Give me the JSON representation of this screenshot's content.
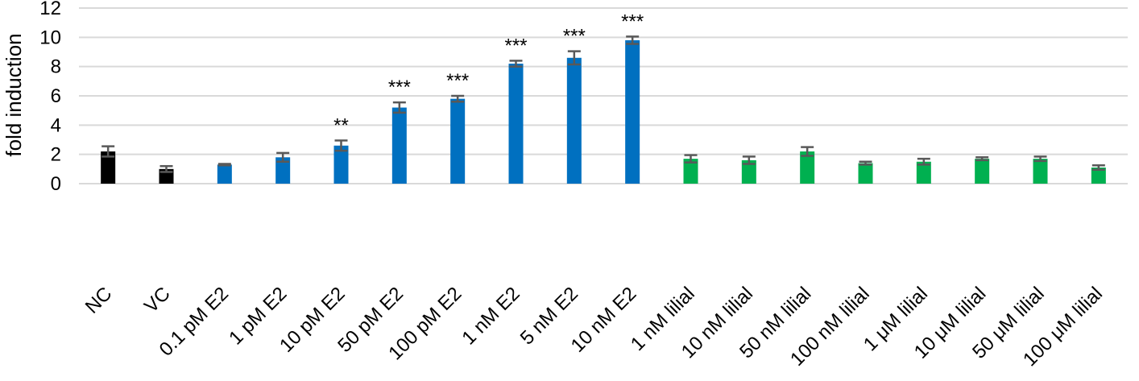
{
  "chart_data": {
    "type": "bar",
    "title": "",
    "xlabel": "",
    "ylabel": "fold induction",
    "ylim": [
      0,
      12
    ],
    "yticks": [
      0,
      2,
      4,
      6,
      8,
      10,
      12
    ],
    "grid": true,
    "legend": "none",
    "categories": [
      "NC",
      "VC",
      "0.1 pM E2",
      "1 pM E2",
      "10 pM E2",
      "50 pM E2",
      "100 pM E2",
      "1 nM E2",
      "5 nM E2",
      "10 nM E2",
      "1 nM lilial",
      "10 nM lilial",
      "50 nM lilial",
      "100 nM lilial",
      "1 μM lilial",
      "10 μM lilial",
      "50 μM lilial",
      "100 μM lilial"
    ],
    "values": [
      2.2,
      1.0,
      1.3,
      1.8,
      2.6,
      5.2,
      5.8,
      8.2,
      8.6,
      9.8,
      1.7,
      1.6,
      2.2,
      1.4,
      1.5,
      1.7,
      1.7,
      1.1
    ],
    "errors": [
      0.35,
      0.2,
      0.05,
      0.3,
      0.35,
      0.35,
      0.2,
      0.2,
      0.45,
      0.25,
      0.25,
      0.25,
      0.3,
      0.1,
      0.2,
      0.1,
      0.15,
      0.15
    ],
    "significance": [
      "",
      "",
      "",
      "",
      "**",
      "***",
      "***",
      "***",
      "***",
      "***",
      "",
      "",
      "",
      "",
      "",
      "",
      "",
      ""
    ],
    "colors": [
      "#000000",
      "#000000",
      "#0070c0",
      "#0070c0",
      "#0070c0",
      "#0070c0",
      "#0070c0",
      "#0070c0",
      "#0070c0",
      "#0070c0",
      "#00b050",
      "#00b050",
      "#00b050",
      "#00b050",
      "#00b050",
      "#00b050",
      "#00b050",
      "#00b050"
    ]
  }
}
